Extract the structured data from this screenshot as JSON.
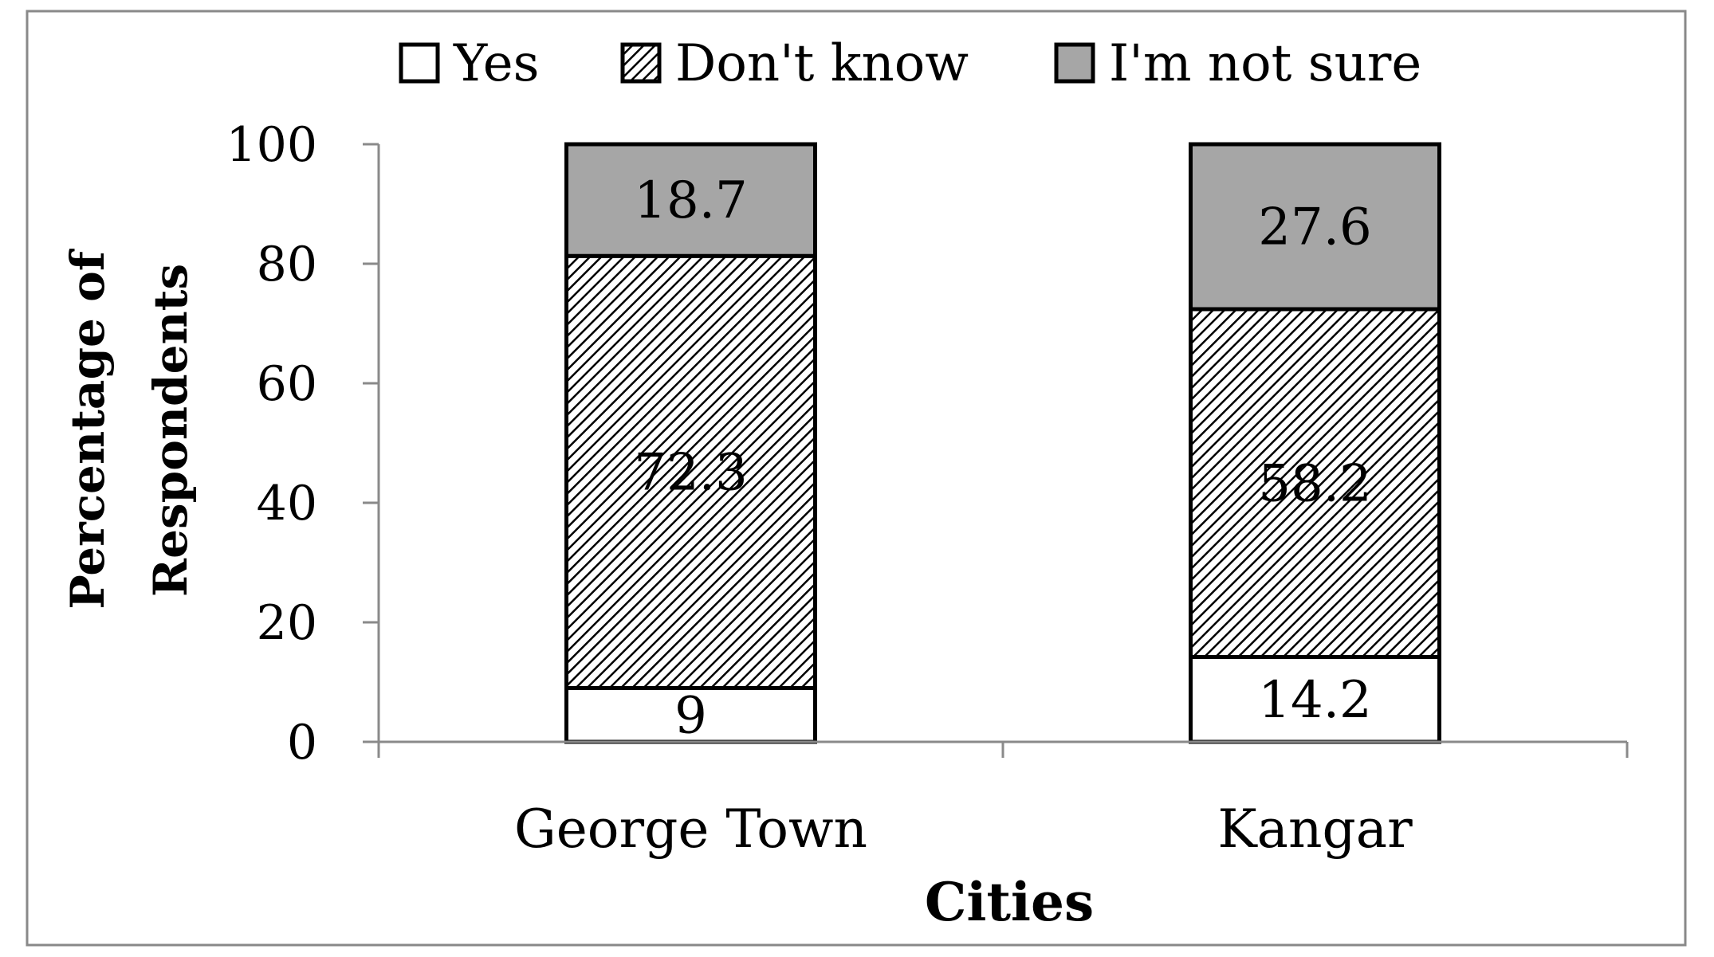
{
  "chart_data": {
    "type": "bar",
    "stacked": true,
    "title": "",
    "xlabel": "Cities",
    "ylabel_lines": [
      "Percentage of",
      "Respondents"
    ],
    "categories": [
      "George Town",
      "Kangar"
    ],
    "series": [
      {
        "name": "Yes",
        "values": [
          9,
          14.2
        ],
        "fill": "solid-white",
        "color": "#ffffff"
      },
      {
        "name": "Don't know",
        "values": [
          72.3,
          58.2
        ],
        "fill": "diagonal-hatch",
        "color": "#000000"
      },
      {
        "name": "I'm not sure",
        "values": [
          18.7,
          27.6
        ],
        "fill": "solid-gray",
        "color": "#a6a6a6"
      }
    ],
    "ylim": [
      0,
      100
    ],
    "yticks": [
      0,
      20,
      40,
      60,
      80,
      100
    ],
    "grid": false,
    "legend": "top-center",
    "border_color": "#898989"
  }
}
